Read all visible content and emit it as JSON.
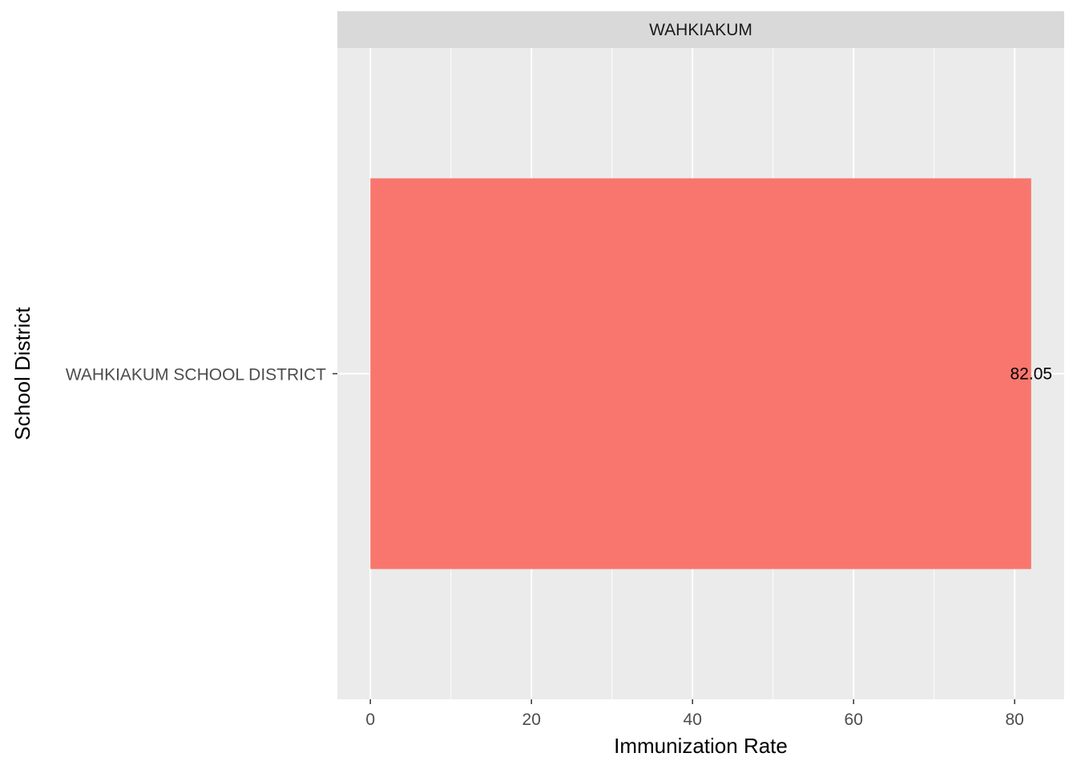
{
  "chart_data": {
    "type": "bar",
    "orientation": "horizontal",
    "facet_label": "WAHKIAKUM",
    "categories": [
      "WAHKIAKUM SCHOOL DISTRICT"
    ],
    "values": [
      82.05
    ],
    "data_labels": [
      "82.05"
    ],
    "xlabel": "Immunization Rate",
    "ylabel": "School District",
    "xlim": [
      -4.1,
      86.15
    ],
    "xticks": [
      0,
      20,
      40,
      60,
      80
    ],
    "x_tick_labels": [
      "0",
      "20",
      "40",
      "60",
      "80"
    ],
    "grid": true,
    "legend": "none",
    "colors": {
      "bar": "#F8766D",
      "panel_background": "#EBEBEB",
      "strip_background": "#D9D9D9",
      "grid_major": "#FFFFFF",
      "axis_text": "#4D4D4D",
      "title_text": "#000000",
      "strip_text": "#1A1A1A"
    }
  }
}
